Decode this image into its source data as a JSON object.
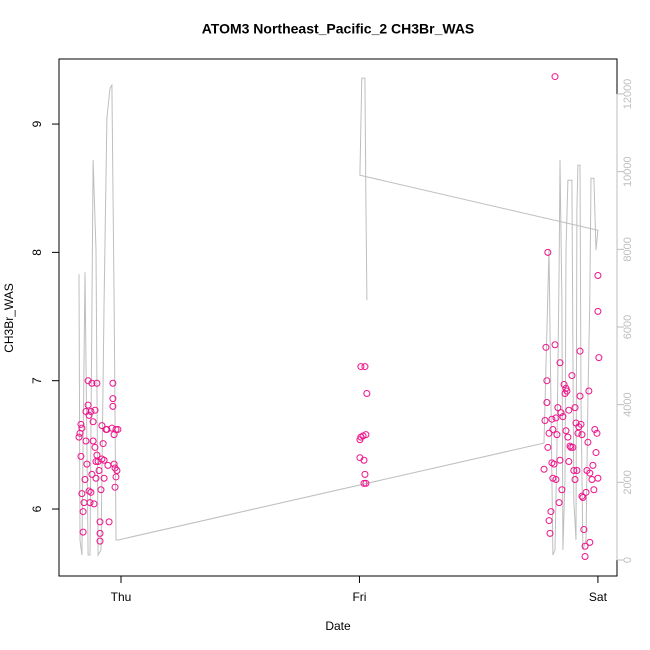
{
  "chart_data": {
    "type": "scatter",
    "title": "ATOM3 Northeast_Pacific_2 CH3Br_WAS",
    "xlabel": "Date",
    "ylabel": "CH3Br_WAS",
    "xlim": [
      -0.26,
      2.08
    ],
    "xticks": [
      {
        "value": 0,
        "label": "Thu"
      },
      {
        "value": 1,
        "label": "Fri"
      },
      {
        "value": 2,
        "label": "Sat"
      }
    ],
    "ylim": [
      5.478,
      9.507
    ],
    "yticks": [
      6,
      7,
      8,
      9
    ],
    "y2lim": [
      -412,
      12901
    ],
    "y2ticks": [
      0,
      2000,
      4000,
      6000,
      8000,
      10000,
      12000
    ],
    "grid": false,
    "points": {
      "color": "#ee1289",
      "x": [
        -0.176,
        -0.172,
        -0.168,
        -0.164,
        -0.168,
        -0.164,
        -0.159,
        -0.159,
        -0.155,
        -0.151,
        -0.147,
        -0.147,
        -0.143,
        -0.138,
        -0.138,
        -0.134,
        -0.134,
        -0.13,
        -0.126,
        -0.126,
        -0.122,
        -0.122,
        -0.117,
        -0.117,
        -0.113,
        -0.109,
        -0.109,
        -0.105,
        -0.105,
        -0.101,
        -0.101,
        -0.096,
        -0.092,
        -0.088,
        -0.088,
        -0.084,
        -0.08,
        -0.08,
        -0.075,
        -0.071,
        -0.071,
        -0.063,
        -0.059,
        -0.055,
        -0.05,
        -0.038,
        -0.034,
        -0.034,
        -0.034,
        -0.029,
        -0.029,
        -0.025,
        -0.025,
        -0.021,
        -0.021,
        -0.017,
        -0.013,
        -0.088,
        1.006,
        1.023,
        1.031,
        1.002,
        1.006,
        1.015,
        1.027,
        1.002,
        1.019,
        1.023,
        1.019,
        1.027,
        1.774,
        1.778,
        1.782,
        1.786,
        1.786,
        1.79,
        1.79,
        1.795,
        1.795,
        1.799,
        1.803,
        1.807,
        1.807,
        1.811,
        1.811,
        1.816,
        1.82,
        1.82,
        1.824,
        1.824,
        1.828,
        1.832,
        1.837,
        1.841,
        1.841,
        1.845,
        1.849,
        1.853,
        1.858,
        1.862,
        1.866,
        1.866,
        1.87,
        1.874,
        1.878,
        1.878,
        1.883,
        1.887,
        1.891,
        1.895,
        1.899,
        1.904,
        1.904,
        1.908,
        1.912,
        1.916,
        1.92,
        1.925,
        1.925,
        1.929,
        1.933,
        1.933,
        1.937,
        1.941,
        1.946,
        1.946,
        1.95,
        1.954,
        1.958,
        1.962,
        1.966,
        1.966,
        1.975,
        1.979,
        1.983,
        1.987,
        1.992,
        1.996,
        2.0,
        2.0,
        2.004,
        2.0
      ],
      "values": [
        6.56,
        6.59,
        6.66,
        6.63,
        6.41,
        6.12,
        5.82,
        5.98,
        6.05,
        6.23,
        6.53,
        6.76,
        6.35,
        6.81,
        7.0,
        6.73,
        6.14,
        6.05,
        6.76,
        6.13,
        6.27,
        6.98,
        6.53,
        6.68,
        6.04,
        6.77,
        6.48,
        6.24,
        6.37,
        6.42,
        6.98,
        6.37,
        6.3,
        5.81,
        5.9,
        6.15,
        6.39,
        6.65,
        6.51,
        6.38,
        6.24,
        6.62,
        6.62,
        6.34,
        5.9,
        6.63,
        6.86,
        6.8,
        6.98,
        6.35,
        6.58,
        6.32,
        6.17,
        6.62,
        6.25,
        6.3,
        6.62,
        5.75,
        7.11,
        7.11,
        6.9,
        6.54,
        6.56,
        6.57,
        6.58,
        6.4,
        6.38,
        6.27,
        6.2,
        6.2,
        6.31,
        6.69,
        7.26,
        7.0,
        6.83,
        8.0,
        6.48,
        6.59,
        5.91,
        5.81,
        5.98,
        6.7,
        6.36,
        6.24,
        6.62,
        6.35,
        9.37,
        7.28,
        6.71,
        6.23,
        6.58,
        6.79,
        6.05,
        7.14,
        6.38,
        6.75,
        6.15,
        6.72,
        6.97,
        6.9,
        6.94,
        6.61,
        6.92,
        6.56,
        6.77,
        6.37,
        6.49,
        6.48,
        7.04,
        6.48,
        6.3,
        6.79,
        6.23,
        6.67,
        6.3,
        6.59,
        6.64,
        7.23,
        6.88,
        6.66,
        6.1,
        6.58,
        6.09,
        5.84,
        5.71,
        5.63,
        6.13,
        6.3,
        6.52,
        6.92,
        6.28,
        5.74,
        6.23,
        6.34,
        6.15,
        6.62,
        6.44,
        6.59,
        7.54,
        7.82,
        7.18,
        6.24
      ]
    },
    "line": {
      "color": "#bebebe",
      "axis": "y2",
      "x": [
        -0.176,
        -0.172,
        -0.164,
        -0.151,
        -0.138,
        -0.13,
        -0.117,
        -0.105,
        -0.096,
        -0.084,
        -0.071,
        -0.059,
        -0.046,
        -0.038,
        -0.029,
        -0.021,
        -0.013,
        1.774,
        1.786,
        1.795,
        1.803,
        1.811,
        1.82,
        1.828,
        1.837,
        1.841,
        1.849,
        1.853,
        1.862,
        1.866,
        1.874,
        1.883,
        1.891,
        1.899,
        1.908,
        1.912,
        1.916,
        1.925,
        1.929,
        1.937,
        1.95,
        1.958,
        1.966,
        1.971,
        1.983,
        1.992,
        2.0,
        1.002,
        1.01,
        1.023,
        1.027,
        1.031
      ],
      "values": [
        7360,
        515,
        130,
        7410,
        130,
        130,
        10300,
        7980,
        130,
        260,
        6690,
        11380,
        12150,
        12230,
        6690,
        515,
        515,
        3010,
        5920,
        7980,
        4120,
        130,
        260,
        2830,
        7460,
        10300,
        6690,
        260,
        2060,
        7980,
        9780,
        9780,
        9780,
        1540,
        515,
        9010,
        10170,
        10170,
        4120,
        260,
        515,
        4120,
        6690,
        9830,
        9830,
        7980,
        8490,
        9910,
        12410,
        12410,
        9270,
        6690
      ]
    }
  }
}
